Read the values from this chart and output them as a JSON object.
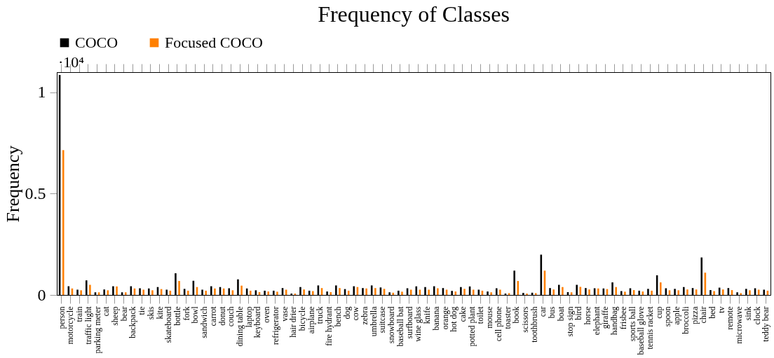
{
  "chart_data": {
    "type": "bar",
    "title": "Frequency of Classes",
    "ylabel": "Frequency",
    "annotations": [
      "·10⁴"
    ],
    "categories": [
      "person",
      "motorcycle",
      "train",
      "traffic light",
      "parking meter",
      "cat",
      "sheep",
      "bear",
      "backpack",
      "tie",
      "skis",
      "kite",
      "skateboard",
      "bottle",
      "fork",
      "bowl",
      "sandwich",
      "carrot",
      "donut",
      "couch",
      "dining table",
      "laptop",
      "keyboard",
      "oven",
      "refrigerator",
      "vase",
      "hair drier",
      "bicycle",
      "airplane",
      "truck",
      "fire hydrant",
      "bench",
      "dog",
      "cow",
      "zebra",
      "umbrella",
      "suitcase",
      "snowboard",
      "baseball bat",
      "surfboard",
      "wine glass",
      "knife",
      "banana",
      "orange",
      "hot dog",
      "cake",
      "potted plant",
      "toilet",
      "mouse",
      "cell phone",
      "toaster",
      "book",
      "scissors",
      "toothbrush",
      "car",
      "bus",
      "boat",
      "stop sign",
      "bird",
      "horse",
      "elephant",
      "giraffe",
      "handbag",
      "frisbee",
      "sports ball",
      "baseball glove",
      "tennis racket",
      "cup",
      "spoon",
      "apple",
      "broccoli",
      "pizza",
      "chair",
      "bed",
      "tv",
      "remote",
      "microwave",
      "sink",
      "clock",
      "teddy bear"
    ],
    "series": [
      {
        "name": "COCO",
        "color": "#000000",
        "values": [
          1.086,
          0.043,
          0.026,
          0.072,
          0.013,
          0.027,
          0.043,
          0.013,
          0.043,
          0.033,
          0.032,
          0.039,
          0.026,
          0.107,
          0.03,
          0.07,
          0.026,
          0.043,
          0.039,
          0.033,
          0.077,
          0.032,
          0.023,
          0.021,
          0.021,
          0.034,
          0.007,
          0.039,
          0.021,
          0.047,
          0.017,
          0.047,
          0.029,
          0.043,
          0.034,
          0.047,
          0.037,
          0.013,
          0.021,
          0.033,
          0.042,
          0.039,
          0.043,
          0.034,
          0.02,
          0.039,
          0.042,
          0.026,
          0.017,
          0.033,
          0.007,
          0.12,
          0.01,
          0.011,
          0.199,
          0.034,
          0.05,
          0.014,
          0.05,
          0.034,
          0.033,
          0.032,
          0.062,
          0.019,
          0.033,
          0.021,
          0.03,
          0.097,
          0.033,
          0.03,
          0.039,
          0.034,
          0.185,
          0.024,
          0.036,
          0.034,
          0.013,
          0.03,
          0.033,
          0.026
        ]
      },
      {
        "name": "Focused COCO",
        "color": "#ff8000",
        "values": [
          0.715,
          0.032,
          0.023,
          0.05,
          0.013,
          0.023,
          0.042,
          0.013,
          0.032,
          0.026,
          0.023,
          0.029,
          0.021,
          0.069,
          0.021,
          0.039,
          0.021,
          0.032,
          0.032,
          0.023,
          0.046,
          0.021,
          0.014,
          0.017,
          0.016,
          0.026,
          0.007,
          0.027,
          0.019,
          0.034,
          0.014,
          0.034,
          0.021,
          0.039,
          0.032,
          0.034,
          0.03,
          0.011,
          0.016,
          0.026,
          0.026,
          0.026,
          0.033,
          0.026,
          0.017,
          0.03,
          0.026,
          0.021,
          0.013,
          0.026,
          0.009,
          0.069,
          0.007,
          0.009,
          0.12,
          0.027,
          0.039,
          0.013,
          0.04,
          0.027,
          0.032,
          0.029,
          0.039,
          0.016,
          0.024,
          0.017,
          0.021,
          0.062,
          0.023,
          0.023,
          0.027,
          0.027,
          0.11,
          0.019,
          0.027,
          0.024,
          0.009,
          0.023,
          0.026,
          0.021
        ]
      }
    ],
    "ylim": [
      0,
      1.1
    ],
    "yticks": [
      0,
      0.5,
      1
    ],
    "legend": "top",
    "grid": false
  }
}
